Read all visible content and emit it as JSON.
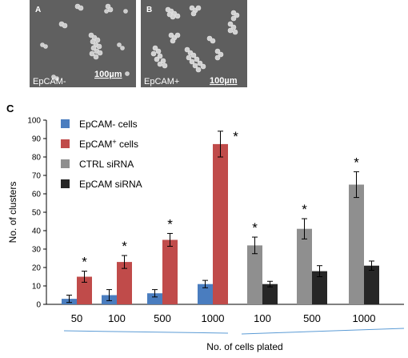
{
  "panels": {
    "a": {
      "letter": "A",
      "condition": "EpCAM-",
      "scale": "100µm"
    },
    "b": {
      "letter": "B",
      "condition": "EpCAM+",
      "scale": "100µm"
    }
  },
  "panel_c_letter": "C",
  "colors": {
    "epcam_neg": "#4a7dbf",
    "epcam_pos": "#c04b4a",
    "ctrl_sirna": "#8f8f8f",
    "epcam_sirna": "#262626",
    "group_line": "#5b9bd5"
  },
  "chart_data": {
    "type": "bar",
    "ylabel": "No. of clusters",
    "xlabel": "No. of cells plated",
    "ylim": [
      0,
      100
    ],
    "yticks": [
      0,
      10,
      20,
      30,
      40,
      50,
      60,
      70,
      80,
      90,
      100
    ],
    "categories": [
      "50",
      "100",
      "500",
      "1000",
      "100",
      "500",
      "1000"
    ],
    "groups": [
      {
        "categories": [
          "50",
          "100",
          "500",
          "1000"
        ]
      },
      {
        "categories": [
          "100",
          "500",
          "1000"
        ]
      }
    ],
    "series": [
      {
        "name": "EpCAM- cells",
        "legend_base": "EpCAM- cells",
        "legend_sup": "",
        "legend_tail": "",
        "color": "#4a7dbf",
        "values": [
          3,
          5,
          6,
          11,
          null,
          null,
          null
        ],
        "errors": [
          2,
          3,
          2,
          2,
          null,
          null,
          null
        ]
      },
      {
        "name": "EpCAM+ cells",
        "legend_base": "EpCAM",
        "legend_sup": "+",
        "legend_tail": " cells",
        "color": "#c04b4a",
        "values": [
          15,
          23,
          35,
          87,
          null,
          null,
          null
        ],
        "errors": [
          3,
          3.5,
          3.5,
          7,
          null,
          null,
          null
        ]
      },
      {
        "name": "CTRL siRNA",
        "legend_base": "CTRL siRNA",
        "legend_sup": "",
        "legend_tail": "",
        "color": "#8f8f8f",
        "values": [
          null,
          null,
          null,
          null,
          32,
          41,
          65
        ],
        "errors": [
          null,
          null,
          null,
          null,
          4.5,
          5.5,
          7
        ]
      },
      {
        "name": "EpCAM siRNA",
        "legend_base": "EpCAM siRNA",
        "legend_sup": "",
        "legend_tail": "",
        "color": "#262626",
        "values": [
          null,
          null,
          null,
          null,
          11,
          18,
          21
        ],
        "errors": [
          null,
          null,
          null,
          null,
          1.5,
          3,
          2.5
        ]
      }
    ],
    "significance": [
      {
        "category_index": 0,
        "series_index": 1,
        "label": "*"
      },
      {
        "category_index": 1,
        "series_index": 1,
        "label": "*"
      },
      {
        "category_index": 2,
        "series_index": 1,
        "label": "*"
      },
      {
        "category_index": 3,
        "series_index": 1,
        "label": "*"
      },
      {
        "category_index": 4,
        "series_index": 2,
        "label": "*"
      },
      {
        "category_index": 5,
        "series_index": 2,
        "label": "*"
      },
      {
        "category_index": 6,
        "series_index": 2,
        "label": "*"
      }
    ],
    "legend_position": "top-left",
    "grid": false
  }
}
